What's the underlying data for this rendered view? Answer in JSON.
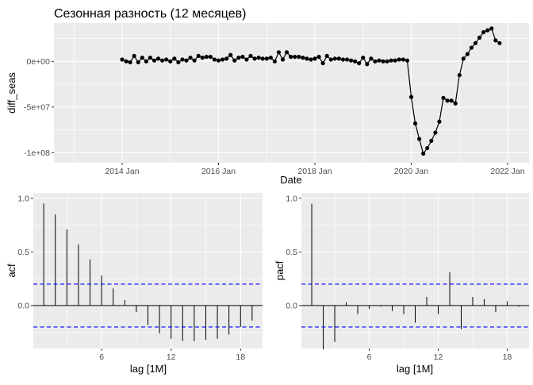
{
  "chart_data": [
    {
      "type": "line",
      "title": "Сезонная разность (12 месяцев)",
      "xlabel": "Date",
      "ylabel": "diff_seas",
      "x_ticks": [
        "2014 Jan",
        "2016 Jan",
        "2018 Jan",
        "2020 Jan",
        "2022 Jan"
      ],
      "y_ticks": [
        "-1e+08",
        "-5e+07",
        "0e+00"
      ],
      "y_tick_values": [
        -100000000,
        -50000000,
        0
      ],
      "x_start": "2014-01",
      "ylim": [
        -111000000,
        42000000
      ],
      "grid": true,
      "series": [
        {
          "values": [
            2000000,
            0,
            -1000000,
            6000000,
            -1000000,
            4000000,
            0,
            4000000,
            1000000,
            3000000,
            1000000,
            2000000,
            0,
            3000000,
            -1000000,
            2000000,
            1000000,
            4000000,
            1000000,
            6000000,
            4000000,
            5000000,
            5000000,
            2000000,
            1000000,
            2000000,
            3000000,
            7000000,
            1000000,
            4000000,
            5000000,
            2000000,
            6000000,
            3000000,
            4000000,
            3000000,
            3000000,
            4000000,
            0,
            10000000,
            2000000,
            10000000,
            5000000,
            5000000,
            5000000,
            4000000,
            3000000,
            2000000,
            3000000,
            5000000,
            -2000000,
            6000000,
            2000000,
            3000000,
            3000000,
            2000000,
            2000000,
            1000000,
            0,
            -2000000,
            4000000,
            -3000000,
            3000000,
            0,
            1000000,
            0,
            0,
            1000000,
            1000000,
            2000000,
            2000000,
            1000000,
            -39000000,
            -68000000,
            -85000000,
            -101000000,
            -95000000,
            -87000000,
            -78000000,
            -66000000,
            -40000000,
            -43000000,
            -43000000,
            -46000000,
            -15000000,
            3000000,
            8000000,
            15000000,
            20000000,
            26000000,
            32000000,
            34000000,
            36000000,
            23000000,
            20000000
          ]
        }
      ]
    },
    {
      "type": "bar",
      "ylabel": "acf",
      "xlabel": "lag [1M]",
      "x_ticks": [
        "6",
        "12",
        "18"
      ],
      "x_tick_values": [
        6,
        12,
        18
      ],
      "y_ticks": [
        "0.0",
        "0.5",
        "1.0"
      ],
      "y_tick_values": [
        0,
        0.5,
        1
      ],
      "ylim": [
        -0.4,
        1.05
      ],
      "xlim": [
        0.1,
        19.9
      ],
      "confidence_band": 0.2,
      "x": [
        1,
        2,
        3,
        4,
        5,
        6,
        7,
        8,
        9,
        10,
        11,
        12,
        13,
        14,
        15,
        16,
        17,
        18,
        19
      ],
      "values": [
        0.95,
        0.85,
        0.71,
        0.57,
        0.43,
        0.28,
        0.16,
        0.05,
        -0.06,
        -0.18,
        -0.26,
        -0.31,
        -0.33,
        -0.33,
        -0.32,
        -0.31,
        -0.27,
        -0.2,
        -0.14
      ]
    },
    {
      "type": "bar",
      "ylabel": "pacf",
      "xlabel": "lag [1M]",
      "x_ticks": [
        "6",
        "12",
        "18"
      ],
      "x_tick_values": [
        6,
        12,
        18
      ],
      "y_ticks": [
        "0.0",
        "0.5",
        "1.0"
      ],
      "y_tick_values": [
        0,
        0.5,
        1
      ],
      "ylim": [
        -0.4,
        1.05
      ],
      "xlim": [
        0.1,
        19.9
      ],
      "confidence_band": 0.2,
      "x": [
        1,
        2,
        3,
        4,
        5,
        6,
        7,
        8,
        9,
        10,
        11,
        12,
        13,
        14,
        15,
        16,
        17,
        18,
        19
      ],
      "values": [
        0.95,
        -0.41,
        -0.34,
        0.03,
        -0.08,
        -0.03,
        -0.01,
        -0.05,
        -0.08,
        -0.16,
        0.08,
        -0.08,
        0.31,
        -0.22,
        0.08,
        0.06,
        -0.06,
        0.04,
        -0.01
      ]
    }
  ]
}
